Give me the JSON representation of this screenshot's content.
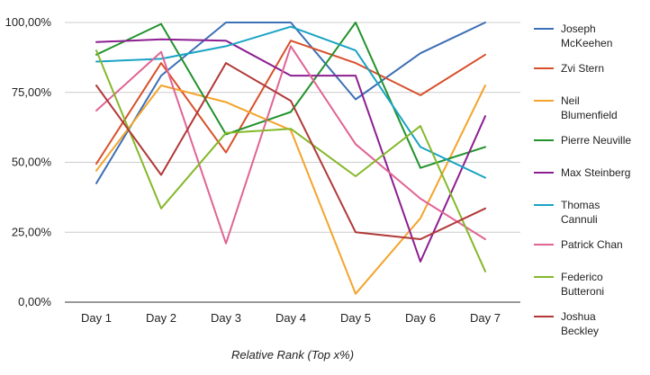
{
  "chart_data": {
    "type": "line",
    "title": "",
    "xlabel": "Relative Rank (Top x%)",
    "ylabel": "",
    "categories": [
      "Day 1",
      "Day 2",
      "Day 3",
      "Day 4",
      "Day 5",
      "Day 6",
      "Day 7"
    ],
    "ylim": [
      0,
      100
    ],
    "yticks": [
      {
        "value": 0,
        "label": "0,00%"
      },
      {
        "value": 25,
        "label": "25,00%"
      },
      {
        "value": 50,
        "label": "50,00%"
      },
      {
        "value": 75,
        "label": "75,00%"
      },
      {
        "value": 100,
        "label": "100,00%"
      }
    ],
    "grid": "horizontal",
    "legend_position": "right",
    "series": [
      {
        "name": "Joseph McKeehen",
        "legend_lines": [
          "Joseph",
          "McKeehen"
        ],
        "color": "#3c6fb5",
        "values": [
          42.5,
          81,
          100,
          100,
          72.5,
          89,
          100
        ]
      },
      {
        "name": "Zvi Stern",
        "legend_lines": [
          "Zvi Stern"
        ],
        "color": "#d8502b",
        "values": [
          49.5,
          85.5,
          53.5,
          93.5,
          85.5,
          74,
          88.5
        ]
      },
      {
        "name": "Neil Blumenfield",
        "legend_lines": [
          "Neil",
          "Blumenfield"
        ],
        "color": "#f4a42b",
        "values": [
          47,
          77.5,
          71.5,
          61.5,
          3,
          30,
          77.5
        ]
      },
      {
        "name": "Pierre Neuville",
        "legend_lines": [
          "Pierre Neuville"
        ],
        "color": "#21922c",
        "values": [
          88.5,
          99.5,
          60,
          68,
          100,
          48,
          55.5
        ]
      },
      {
        "name": "Max Steinberg",
        "legend_lines": [
          "Max Steinberg"
        ],
        "color": "#8c1e91",
        "values": [
          93,
          94,
          93.5,
          81,
          81,
          14.5,
          66.5
        ]
      },
      {
        "name": "Thomas Cannuli",
        "legend_lines": [
          "Thomas",
          "Cannuli"
        ],
        "color": "#1aa3c4",
        "values": [
          86,
          87,
          91.5,
          98.5,
          90,
          55.5,
          44.5
        ]
      },
      {
        "name": "Patrick Chan",
        "legend_lines": [
          "Patrick Chan"
        ],
        "color": "#e06494",
        "values": [
          68.5,
          89.5,
          21,
          91.5,
          56.5,
          37,
          22.5
        ]
      },
      {
        "name": "Federico Butteroni",
        "legend_lines": [
          "Federico",
          "Butteroni"
        ],
        "color": "#85b82b",
        "values": [
          90,
          33.5,
          60.5,
          62,
          45,
          63,
          11
        ]
      },
      {
        "name": "Joshua Beckley",
        "legend_lines": [
          "Joshua",
          "Beckley"
        ],
        "color": "#b23838",
        "values": [
          77.5,
          45.5,
          85.5,
          72,
          25,
          22.5,
          33.5
        ]
      }
    ]
  }
}
